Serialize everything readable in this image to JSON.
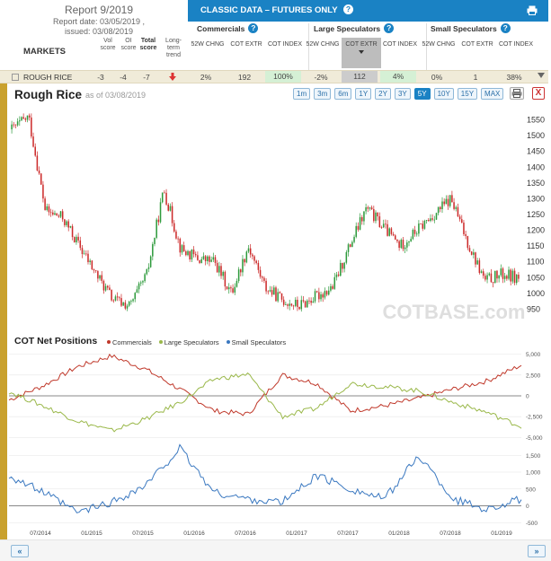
{
  "report": {
    "title": "Report 9/2019",
    "report_date": "Report date: 03/05/2019 ,",
    "issued": "issued: 03/08/2019"
  },
  "markets_label": "MARKETS",
  "score_headers": {
    "vol": "Vol score",
    "oi": "OI score",
    "total": "Total score",
    "trend": "Long-term trend"
  },
  "classic_bar": {
    "title": "CLASSIC DATA – FUTURES ONLY"
  },
  "groups": {
    "commercials": "Commercials",
    "large": "Large Speculators",
    "small": "Small Speculators"
  },
  "col_headers": [
    "52W CHNG",
    "COT EXTR",
    "COT INDEX",
    "52W CHNG",
    "COT EXTR",
    "COT INDEX",
    "52W CHNG",
    "COT EXTR",
    "COT INDEX"
  ],
  "row": {
    "market": "ROUGH RICE",
    "vol": "-3",
    "oi": "-4",
    "total": "-7",
    "values": [
      "2%",
      "192",
      "100%",
      "-2%",
      "112",
      "4%",
      "0%",
      "1",
      "38%"
    ]
  },
  "chart": {
    "title": "Rough Rice",
    "as_of": "as of 03/08/2019",
    "ranges": [
      "1m",
      "3m",
      "6m",
      "1Y",
      "2Y",
      "3Y",
      "5Y",
      "10Y",
      "15Y",
      "MAX"
    ],
    "active_range": "5Y",
    "close_label": "X"
  },
  "cot": {
    "title": "COT Net Positions",
    "legend": [
      "Commercials",
      "Large Speculators",
      "Small Speculators"
    ]
  },
  "colors": {
    "brand_blue": "#1a82c4",
    "commercials": "#c0392b",
    "large": "#9ab84a",
    "small": "#3a78c0",
    "gold": "#c9a12e"
  },
  "watermark": "COTBASE.com",
  "nav": {
    "prev": "«",
    "next": "»"
  },
  "chart_data": [
    {
      "type": "candlestick",
      "title": "Rough Rice",
      "y_ticks": [
        950,
        1000,
        1050,
        1100,
        1150,
        1200,
        1250,
        1300,
        1350,
        1400,
        1450,
        1500,
        1550
      ],
      "x_ticks": [
        "07/2014",
        "01/2015",
        "07/2015",
        "01/2016",
        "07/2016",
        "01/2017",
        "07/2017",
        "01/2018",
        "07/2018",
        "01/2019"
      ],
      "ylim": [
        920,
        1580
      ],
      "x": [
        "2014-03",
        "2014-05",
        "2014-07",
        "2014-09",
        "2014-11",
        "2015-01",
        "2015-03",
        "2015-05",
        "2015-07",
        "2015-09",
        "2015-11",
        "2016-01",
        "2016-03",
        "2016-05",
        "2016-07",
        "2016-09",
        "2016-11",
        "2017-01",
        "2017-03",
        "2017-05",
        "2017-07",
        "2017-09",
        "2017-11",
        "2018-01",
        "2018-03",
        "2018-05",
        "2018-07",
        "2018-09",
        "2018-11",
        "2019-01",
        "2019-03"
      ],
      "close": [
        1520,
        1560,
        1260,
        1240,
        1150,
        1060,
        980,
        960,
        1060,
        1330,
        1140,
        1110,
        1100,
        1000,
        1150,
        1020,
        980,
        960,
        990,
        1020,
        1150,
        1270,
        1210,
        1150,
        1200,
        1250,
        1300,
        1160,
        1040,
        1060,
        1050
      ]
    },
    {
      "type": "line",
      "title": "COT Net Positions",
      "y_ticks": [
        -5000,
        -2500,
        0,
        2500,
        5000
      ],
      "ylim": [
        -5500,
        5500
      ],
      "x": [
        "2014-03",
        "2014-07",
        "2014-11",
        "2015-03",
        "2015-07",
        "2015-11",
        "2016-03",
        "2016-07",
        "2016-11",
        "2017-03",
        "2017-07",
        "2017-11",
        "2018-03",
        "2018-07",
        "2018-11",
        "2019-03"
      ],
      "series": [
        {
          "name": "Commercials",
          "values": [
            -500,
            1200,
            3500,
            4800,
            3200,
            800,
            -1800,
            -2200,
            2500,
            1500,
            -1800,
            -1200,
            -300,
            800,
            1800,
            3700
          ]
        },
        {
          "name": "Large Speculators",
          "values": [
            500,
            -1200,
            -3000,
            -4200,
            -2800,
            -800,
            2000,
            2600,
            -2500,
            -1500,
            1500,
            1100,
            600,
            -800,
            -2000,
            -3700
          ]
        }
      ]
    },
    {
      "type": "line",
      "y_ticks": [
        -500,
        0,
        500,
        1000,
        1500
      ],
      "ylim": [
        -600,
        1800
      ],
      "x": [
        "2014-03",
        "2014-07",
        "2014-11",
        "2015-03",
        "2015-07",
        "2015-11",
        "2016-03",
        "2016-07",
        "2016-11",
        "2017-03",
        "2017-07",
        "2017-11",
        "2018-03",
        "2018-07",
        "2018-11",
        "2019-03"
      ],
      "series": [
        {
          "name": "Small Speculators",
          "values": [
            900,
            400,
            -200,
            100,
            600,
            1700,
            400,
            200,
            100,
            900,
            500,
            200,
            1500,
            200,
            -100,
            200
          ]
        }
      ]
    }
  ]
}
